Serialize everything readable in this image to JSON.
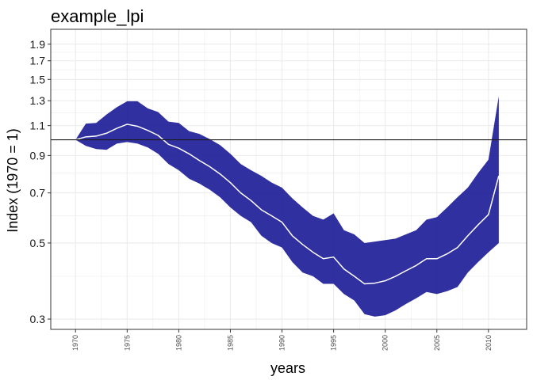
{
  "chart_data": {
    "type": "area",
    "title": "example_lpi",
    "xlabel": "years",
    "ylabel": "Index (1970 = 1)",
    "y_scale": "log",
    "xlim": [
      1967.6,
      2013.7
    ],
    "ylim": [
      0.28,
      2.1
    ],
    "x_ticks": [
      1970,
      1975,
      1980,
      1985,
      1990,
      1995,
      2000,
      2005,
      2010
    ],
    "y_ticks": [
      0.3,
      0.5,
      0.7,
      0.9,
      1.1,
      1.3,
      1.5,
      1.7,
      1.9
    ],
    "grid": true,
    "legend": "none",
    "reference_line": 1,
    "colors": {
      "band_fill": "#1a1a96",
      "index_line": "#ffffff",
      "reference_line": "#1a1a1a",
      "grid": "#ebebeb",
      "panel_border": "#333333",
      "text": "#1a1a1a",
      "tick_text": "#4d4d4d"
    },
    "x": [
      1970,
      1971,
      1972,
      1973,
      1974,
      1975,
      1976,
      1977,
      1978,
      1979,
      1980,
      1981,
      1982,
      1983,
      1984,
      1985,
      1986,
      1987,
      1988,
      1989,
      1990,
      1991,
      1992,
      1993,
      1994,
      1995,
      1996,
      1997,
      1998,
      1999,
      2000,
      2001,
      2002,
      2003,
      2004,
      2005,
      2006,
      2007,
      2008,
      2009,
      2010,
      2011
    ],
    "series": [
      {
        "values": [
          1.0,
          1.02,
          1.025,
          1.045,
          1.08,
          1.11,
          1.095,
          1.065,
          1.03,
          0.97,
          0.945,
          0.91,
          0.87,
          0.835,
          0.795,
          0.75,
          0.7,
          0.665,
          0.625,
          0.6,
          0.575,
          0.525,
          0.495,
          0.47,
          0.45,
          0.455,
          0.42,
          0.4,
          0.38,
          0.382,
          0.388,
          0.4,
          0.415,
          0.43,
          0.45,
          0.45,
          0.465,
          0.485,
          0.525,
          0.565,
          0.605,
          0.785
        ]
      },
      {
        "values": [
          1.0,
          0.96,
          0.94,
          0.935,
          0.975,
          0.985,
          0.975,
          0.95,
          0.91,
          0.85,
          0.815,
          0.77,
          0.745,
          0.715,
          0.68,
          0.635,
          0.6,
          0.575,
          0.525,
          0.5,
          0.485,
          0.44,
          0.41,
          0.4,
          0.38,
          0.38,
          0.355,
          0.34,
          0.31,
          0.305,
          0.308,
          0.318,
          0.332,
          0.345,
          0.36,
          0.355,
          0.362,
          0.372,
          0.41,
          0.44,
          0.47,
          0.5
        ]
      },
      {
        "values": [
          1.0,
          1.115,
          1.12,
          1.185,
          1.245,
          1.295,
          1.295,
          1.235,
          1.205,
          1.13,
          1.12,
          1.06,
          1.04,
          1.005,
          0.965,
          0.91,
          0.85,
          0.815,
          0.785,
          0.75,
          0.725,
          0.675,
          0.635,
          0.6,
          0.585,
          0.61,
          0.545,
          0.53,
          0.5,
          0.505,
          0.51,
          0.515,
          0.53,
          0.545,
          0.585,
          0.595,
          0.635,
          0.68,
          0.725,
          0.8,
          0.875,
          1.34
        ]
      }
    ]
  }
}
